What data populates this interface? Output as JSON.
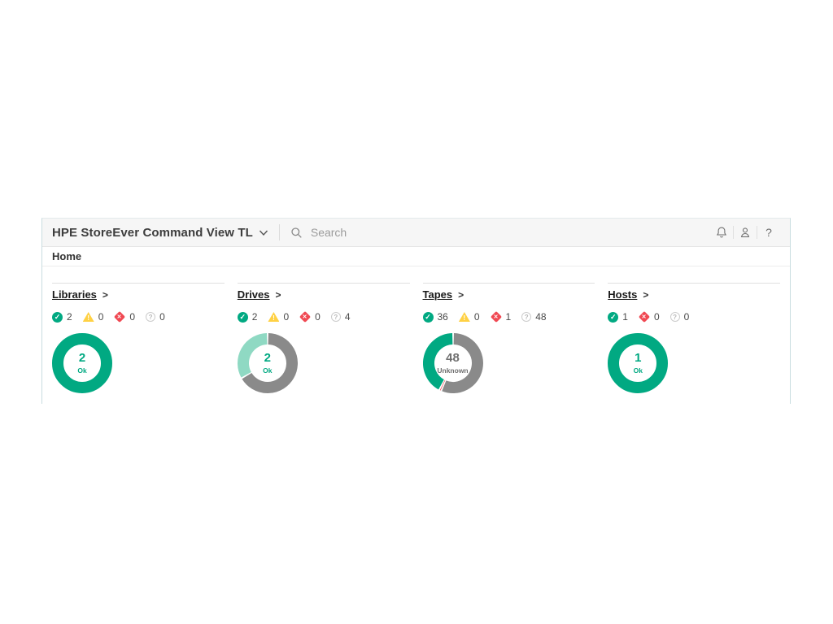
{
  "header": {
    "title": "HPE StoreEver Command View TL",
    "search": {
      "placeholder": "Search"
    },
    "icons": [
      "chevron-down-icon",
      "search-icon",
      "notifications-icon",
      "user-icon",
      "help-icon"
    ],
    "help_glyph": "?"
  },
  "breadcrumb": {
    "label": "Home"
  },
  "colors": {
    "ok": "#01A982",
    "ok_light": "#8FD9C3",
    "warning": "#FFD144",
    "error": "#F04953",
    "unknown_segment": "#8A8A8A",
    "unknown_text": "#6f6f6f"
  },
  "status_glyphs": {
    "ok": "✓",
    "warning": "!",
    "error": "✕",
    "unknown": "?"
  },
  "sections": [
    {
      "name": "Libraries",
      "caret": ">",
      "statuses": [
        {
          "type": "ok",
          "count": "2"
        },
        {
          "type": "warning",
          "count": "0"
        },
        {
          "type": "error",
          "count": "0"
        },
        {
          "type": "unknown",
          "count": "0"
        }
      ],
      "chart": {
        "type": "donut",
        "center_value": "2",
        "center_label": "Ok",
        "center_color": "#01A982",
        "segments": [
          {
            "label": "Ok",
            "value": 2,
            "color": "#01A982"
          }
        ]
      }
    },
    {
      "name": "Drives",
      "caret": ">",
      "statuses": [
        {
          "type": "ok",
          "count": "2"
        },
        {
          "type": "warning",
          "count": "0"
        },
        {
          "type": "error",
          "count": "0"
        },
        {
          "type": "unknown",
          "count": "4"
        }
      ],
      "chart": {
        "type": "donut",
        "center_value": "2",
        "center_label": "Ok",
        "center_color": "#01A982",
        "segments": [
          {
            "label": "Ok",
            "value": 2,
            "color": "#8FD9C3"
          },
          {
            "label": "Unknown",
            "value": 4,
            "color": "#8A8A8A"
          }
        ]
      }
    },
    {
      "name": "Tapes",
      "caret": ">",
      "statuses": [
        {
          "type": "ok",
          "count": "36"
        },
        {
          "type": "warning",
          "count": "0"
        },
        {
          "type": "error",
          "count": "1"
        },
        {
          "type": "unknown",
          "count": "48"
        }
      ],
      "chart": {
        "type": "donut",
        "center_value": "48",
        "center_label": "Unknown",
        "center_color": "#6f6f6f",
        "segments": [
          {
            "label": "Ok",
            "value": 36,
            "color": "#01A982"
          },
          {
            "label": "Error",
            "value": 1,
            "color": "#F04953"
          },
          {
            "label": "Unknown",
            "value": 48,
            "color": "#8A8A8A"
          }
        ]
      }
    },
    {
      "name": "Hosts",
      "caret": ">",
      "statuses": [
        {
          "type": "ok",
          "count": "1"
        },
        {
          "type": "error",
          "count": "0"
        },
        {
          "type": "unknown",
          "count": "0"
        }
      ],
      "chart": {
        "type": "donut",
        "center_value": "1",
        "center_label": "Ok",
        "center_color": "#01A982",
        "segments": [
          {
            "label": "Ok",
            "value": 1,
            "color": "#01A982"
          }
        ]
      }
    }
  ]
}
